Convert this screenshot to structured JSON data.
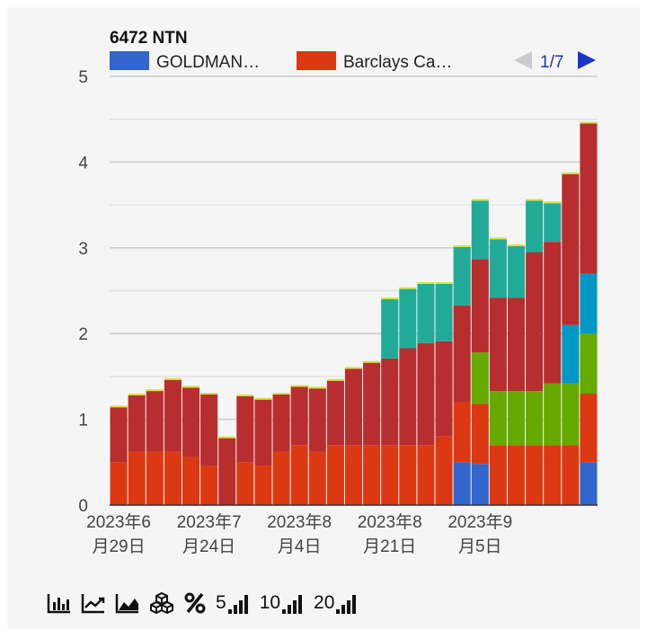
{
  "chart_data": {
    "type": "bar",
    "stacked": true,
    "title": "6472 NTN",
    "legend": {
      "position": "top",
      "entries": [
        {
          "label": "GOLDMAN…",
          "color": "#3366cc"
        },
        {
          "label": "Barclays Ca…",
          "color": "#dc3912"
        }
      ],
      "page": "1/7"
    },
    "ylim": [
      0,
      5
    ],
    "y_ticks": [
      "0",
      "1",
      "2",
      "3",
      "4",
      "5"
    ],
    "x_tick_labels": [
      {
        "line1": "2023年6",
        "line2": "月29日",
        "index": 0
      },
      {
        "line1": "2023年7",
        "line2": "月24日",
        "index": 5
      },
      {
        "line1": "2023年8",
        "line2": "月4日",
        "index": 10
      },
      {
        "line1": "2023年8",
        "line2": "月21日",
        "index": 15
      },
      {
        "line1": "2023年9",
        "line2": "月5日",
        "index": 20
      }
    ],
    "series": [
      {
        "color": "#3366cc",
        "values": [
          0,
          0,
          0,
          0,
          0,
          0,
          0,
          0,
          0,
          0,
          0,
          0,
          0,
          0,
          0,
          0,
          0,
          0,
          0,
          0.5,
          0.48,
          0,
          0,
          0,
          0,
          0,
          0.5
        ]
      },
      {
        "color": "#dc3912",
        "values": [
          0.5,
          0.62,
          0.62,
          0.62,
          0.56,
          0.46,
          0,
          0.5,
          0.46,
          0.62,
          0.7,
          0.62,
          0.7,
          0.7,
          0.7,
          0.7,
          0.7,
          0.7,
          0.8,
          0.7,
          0.7,
          0.7,
          0.7,
          0.7,
          0.7,
          0.7,
          0.8
        ]
      },
      {
        "color": "#66aa00",
        "values": [
          0,
          0,
          0,
          0,
          0,
          0,
          0,
          0,
          0,
          0,
          0,
          0,
          0,
          0,
          0,
          0,
          0,
          0,
          0,
          0,
          0.6,
          0.63,
          0.63,
          0.63,
          0.72,
          0.72,
          0.7
        ]
      },
      {
        "color": "#0099c6",
        "values": [
          0,
          0,
          0,
          0,
          0,
          0,
          0,
          0,
          0,
          0,
          0,
          0,
          0,
          0,
          0,
          0,
          0,
          0,
          0,
          0,
          0,
          0,
          0,
          0,
          0,
          0.68,
          0.7
        ]
      },
      {
        "color": "#b82e2e",
        "values": [
          0.64,
          0.66,
          0.71,
          0.84,
          0.81,
          0.83,
          0.78,
          0.77,
          0.77,
          0.67,
          0.68,
          0.74,
          0.75,
          0.89,
          0.96,
          1.01,
          1.13,
          1.19,
          1.11,
          1.13,
          1.09,
          1.09,
          1.09,
          1.62,
          1.65,
          1.76,
          1.75
        ]
      },
      {
        "color": "#22aa99",
        "values": [
          0,
          0,
          0,
          0,
          0,
          0,
          0,
          0,
          0,
          0,
          0,
          0,
          0,
          0,
          0,
          0.69,
          0.69,
          0.69,
          0.67,
          0.68,
          0.68,
          0.68,
          0.6,
          0.6,
          0.45,
          0,
          0
        ]
      },
      {
        "color": "#d6e23c",
        "values": [
          0.02,
          0.02,
          0.02,
          0.02,
          0.02,
          0.02,
          0.02,
          0.02,
          0.02,
          0.02,
          0.02,
          0.02,
          0.02,
          0.02,
          0.02,
          0.02,
          0.02,
          0.02,
          0.02,
          0.02,
          0.02,
          0.02,
          0.02,
          0.02,
          0.02,
          0.02,
          0.02
        ]
      }
    ],
    "grid": true
  },
  "toolbar": {
    "num5": "5",
    "num10": "10",
    "num20": "20"
  }
}
